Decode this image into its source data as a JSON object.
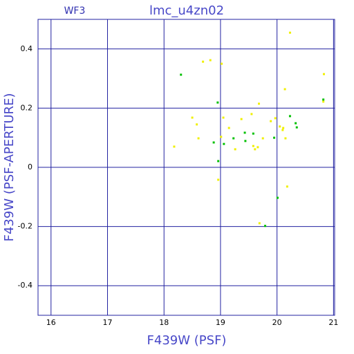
{
  "chart_data": {
    "type": "scatter",
    "title": "lmc_u4zn02",
    "subtitle": "WF3",
    "xlabel": "F439W (PSF)",
    "ylabel": "F439W (PSF-APERTURE)",
    "xlim": [
      15.77,
      21.02
    ],
    "ylim": [
      -0.5,
      0.5
    ],
    "xticks": [
      16,
      17,
      18,
      19,
      20,
      21
    ],
    "yticks": [
      -0.4,
      -0.2,
      0,
      0.2,
      0.4
    ],
    "grid": true,
    "series": [
      {
        "color": "#00c000",
        "x": [
          18.3,
          18.95,
          18.88,
          18.96,
          19.06,
          19.23,
          19.43,
          19.44,
          19.58,
          19.95,
          20.23,
          20.33,
          20.35,
          20.82,
          20.01,
          19.79
        ],
        "values": [
          0.313,
          0.219,
          0.084,
          0.021,
          0.079,
          0.098,
          0.117,
          0.089,
          0.114,
          0.1,
          0.173,
          0.149,
          0.135,
          0.229,
          -0.103,
          -0.198
        ]
      },
      {
        "color": "#f0f000",
        "x": [
          20.23,
          18.69,
          18.82,
          19.02,
          18.18,
          18.5,
          18.58,
          18.61,
          19.01,
          19.05,
          18.96,
          19.37,
          19.55,
          19.58,
          19.61,
          19.66,
          19.68,
          19.75,
          19.89,
          19.97,
          20.05,
          20.1,
          20.11,
          20.14,
          20.15,
          20.18,
          20.83,
          20.82,
          19.69,
          19.26,
          19.15
        ],
        "values": [
          0.455,
          0.357,
          0.362,
          0.35,
          0.07,
          0.168,
          0.145,
          0.098,
          0.103,
          0.168,
          -0.042,
          0.163,
          0.18,
          0.072,
          0.061,
          0.068,
          0.215,
          0.098,
          0.156,
          0.166,
          0.138,
          0.126,
          0.133,
          0.264,
          0.098,
          -0.065,
          0.315,
          0.222,
          -0.189,
          0.061,
          0.133
        ]
      }
    ]
  }
}
